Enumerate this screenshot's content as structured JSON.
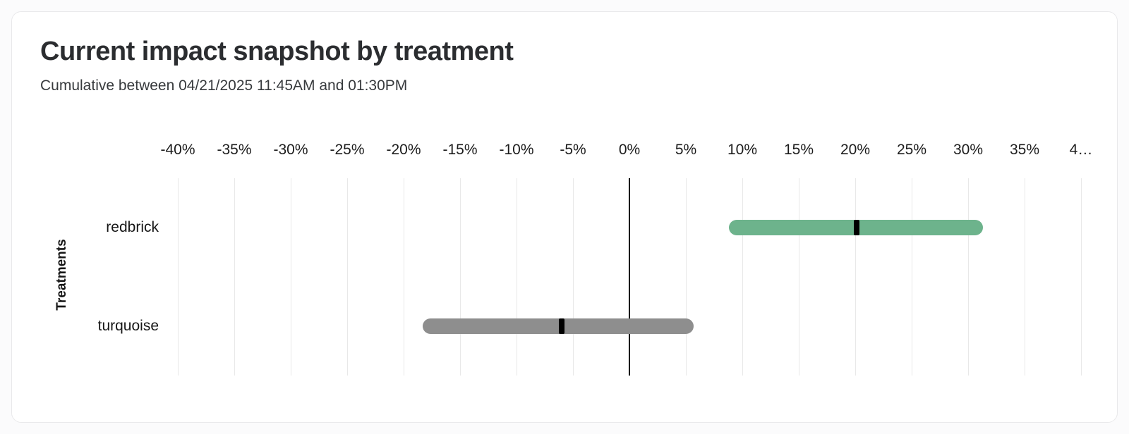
{
  "header": {
    "title": "Current impact snapshot by treatment",
    "subtitle": "Cumulative between 04/21/2025 11:45AM and 01:30PM"
  },
  "chart_data": {
    "type": "bar",
    "subtype": "horizontal-range-bar",
    "title": "Current impact snapshot by treatment",
    "subtitle": "Cumulative between 04/21/2025 11:45AM and 01:30PM",
    "xlabel": "",
    "ylabel": "Treatments",
    "unit": "%",
    "xlim": [
      -40,
      40
    ],
    "grid": true,
    "legend": "none",
    "axis_labels_position": "top",
    "ticks": [
      {
        "value": -40,
        "label": "-40%"
      },
      {
        "value": -35,
        "label": "-35%"
      },
      {
        "value": -30,
        "label": "-30%"
      },
      {
        "value": -25,
        "label": "-25%"
      },
      {
        "value": -20,
        "label": "-20%"
      },
      {
        "value": -15,
        "label": "-15%"
      },
      {
        "value": -10,
        "label": "-10%"
      },
      {
        "value": -5,
        "label": "-5%"
      },
      {
        "value": 0,
        "label": "0%"
      },
      {
        "value": 5,
        "label": "5%"
      },
      {
        "value": 10,
        "label": "10%"
      },
      {
        "value": 15,
        "label": "15%"
      },
      {
        "value": 20,
        "label": "20%"
      },
      {
        "value": 25,
        "label": "25%"
      },
      {
        "value": 30,
        "label": "30%"
      },
      {
        "value": 35,
        "label": "35%"
      },
      {
        "value": 40,
        "label": "4…"
      }
    ],
    "categories": [
      "redbrick",
      "turquoise"
    ],
    "series": [
      {
        "name": "redbrick",
        "range_low": 8.8,
        "midpoint": 20.1,
        "range_high": 31.3,
        "bar_color": "#6db38c"
      },
      {
        "name": "turquoise",
        "range_low": -18.3,
        "midpoint": -6.0,
        "range_high": 5.7,
        "bar_color": "#8e8e8e"
      }
    ],
    "marker_color": "#000000",
    "gridline_color": "#e8e8e8",
    "zero_line_color": "#000000"
  }
}
